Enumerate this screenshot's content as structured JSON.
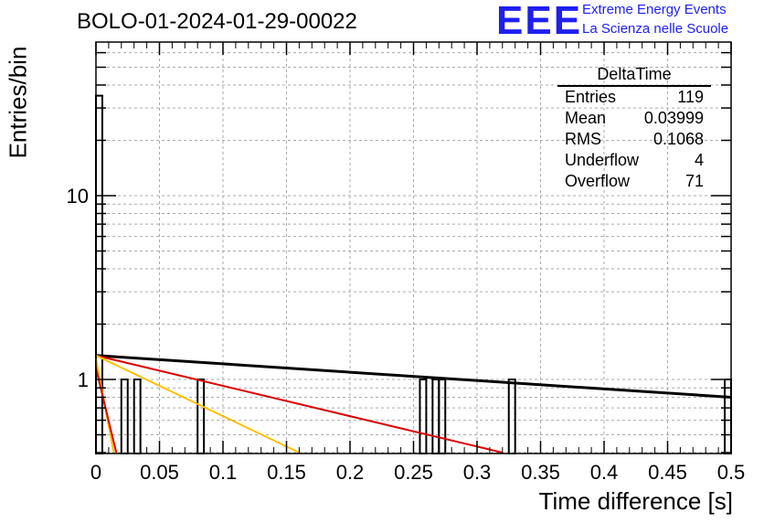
{
  "header": {
    "title": "BOLO-01-2024-01-29-00022",
    "logo_text": "EEE",
    "logo_line1": "Extreme Energy Events",
    "logo_line2": "La Scienza nelle Scuole"
  },
  "stats": {
    "title": "DeltaTime",
    "rows": [
      {
        "label": "Entries",
        "value": "119"
      },
      {
        "label": "Mean",
        "value": "0.03999"
      },
      {
        "label": "RMS",
        "value": "0.1068"
      },
      {
        "label": "Underflow",
        "value": "4"
      },
      {
        "label": "Overflow",
        "value": "71"
      }
    ]
  },
  "chart_data": {
    "type": "histogram",
    "xlabel": "Time difference [s]",
    "ylabel": "Entries/bin",
    "xlim": [
      0,
      0.5
    ],
    "ylim": [
      0.4,
      60
    ],
    "yscale": "log",
    "grid": true,
    "x_ticks": [
      "0",
      "0.05",
      "0.1",
      "0.15",
      "0.2",
      "0.25",
      "0.3",
      "0.35",
      "0.4",
      "0.45",
      "0.5"
    ],
    "y_ticks": [
      "1",
      "10"
    ],
    "bin_width": 0.005,
    "bars": [
      {
        "x": 0.0,
        "count": 35
      },
      {
        "x": 0.02,
        "count": 1
      },
      {
        "x": 0.03,
        "count": 1
      },
      {
        "x": 0.08,
        "count": 1
      },
      {
        "x": 0.255,
        "count": 1
      },
      {
        "x": 0.265,
        "count": 1
      },
      {
        "x": 0.27,
        "count": 1
      },
      {
        "x": 0.325,
        "count": 1
      },
      {
        "x": 0.495,
        "count": 1
      }
    ],
    "fits": [
      {
        "color": "#000000",
        "points": [
          [
            0,
            1.35
          ],
          [
            0.5,
            0.8
          ]
        ]
      },
      {
        "color": "#dd0000",
        "points": [
          [
            0,
            1.35
          ],
          [
            0.32,
            0.4
          ]
        ]
      },
      {
        "color": "#ffbf00",
        "points": [
          [
            0,
            1.35
          ],
          [
            0.16,
            0.4
          ]
        ]
      },
      {
        "color": "#ffbf00",
        "points": [
          [
            0,
            1.3
          ],
          [
            0.014,
            0.4
          ]
        ]
      },
      {
        "color": "#dd0000",
        "points": [
          [
            0,
            1.15
          ],
          [
            0.016,
            0.4
          ]
        ]
      }
    ]
  }
}
